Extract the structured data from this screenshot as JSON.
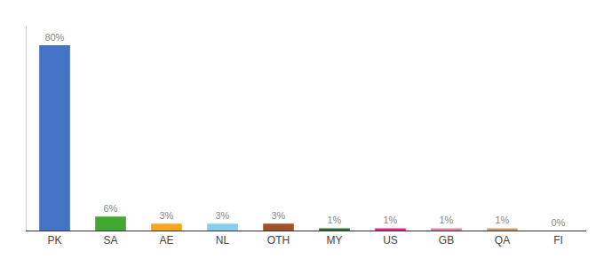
{
  "chart_data": {
    "type": "bar",
    "categories": [
      "PK",
      "SA",
      "AE",
      "NL",
      "OTH",
      "MY",
      "US",
      "GB",
      "QA",
      "FI"
    ],
    "values": [
      80,
      6,
      3,
      3,
      3,
      1,
      1,
      1,
      1,
      0
    ],
    "value_labels": [
      "80%",
      "6%",
      "3%",
      "3%",
      "3%",
      "1%",
      "1%",
      "1%",
      "1%",
      "0%"
    ],
    "colors": [
      "#4472c4",
      "#43a832",
      "#f5a623",
      "#87ceeb",
      "#a0522d",
      "#2e6b2e",
      "#e91e8c",
      "#e87ea0",
      "#d4956a",
      "#cccccc"
    ],
    "ylim": [
      0,
      88
    ],
    "data_labels": true,
    "tick_labels": "x",
    "grid": false
  }
}
